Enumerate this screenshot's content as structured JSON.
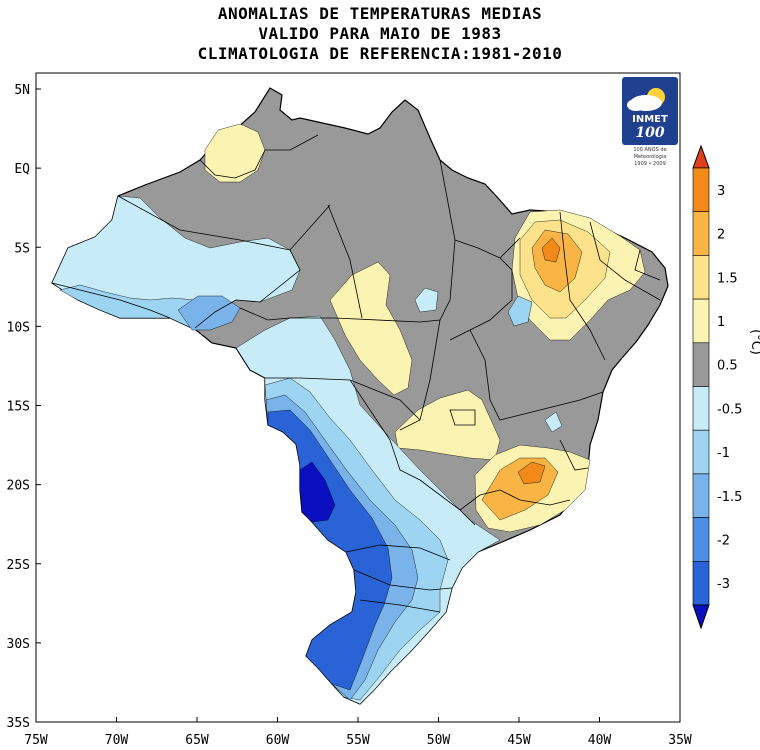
{
  "title": {
    "line1": "ANOMALIAS DE TEMPERATURAS MEDIAS",
    "line2": "VALIDO PARA MAIO DE 1983",
    "line3": "CLIMATOLOGIA DE REFERENCIA:1981-2010"
  },
  "logo": {
    "name": "INMET",
    "number": "100",
    "sub1": "100 ANOS de",
    "sub2": "Meteorologia",
    "sub3": "1909 • 2009"
  },
  "axes": {
    "x_ticks": [
      "75W",
      "70W",
      "65W",
      "60W",
      "55W",
      "50W",
      "45W",
      "40W",
      "35W"
    ],
    "y_ticks": [
      "5N",
      "EQ",
      "5S",
      "10S",
      "15S",
      "20S",
      "25S",
      "30S",
      "35S"
    ]
  },
  "colorbar": {
    "unit": "(°C)",
    "labels": [
      "3",
      "2",
      "1.5",
      "1",
      "0.5",
      "-0.5",
      "-1",
      "-1.5",
      "-2",
      "-3"
    ],
    "colors": [
      "#e0401e",
      "#f28a1a",
      "#f8b545",
      "#fde28c",
      "#fbf3b2",
      "#999999",
      "#c7ecf7",
      "#9cd4f2",
      "#7ab3ea",
      "#4d8ee3",
      "#2a63d6",
      "#0a10c0"
    ]
  },
  "map_legend_colors": {
    "neutral": "#999999",
    "warm_1": "#fbf3b2",
    "warm_1_5": "#fde28c",
    "warm_2": "#f8b545",
    "warm_3": "#f28a1a",
    "cool_1": "#c7ecf7",
    "cool_1_5": "#9cd4f2",
    "cool_2": "#7ab3ea",
    "cool_3": "#2a63d6",
    "cool_extreme": "#0a10c0"
  }
}
